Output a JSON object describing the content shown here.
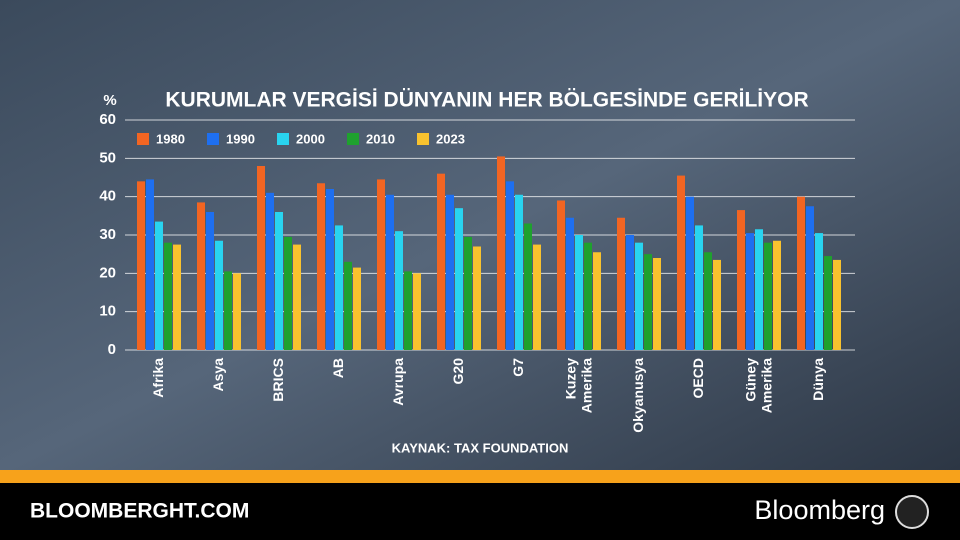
{
  "chart_data": {
    "type": "bar",
    "title": "KURUMLAR VERGİSİ DÜNYANIN HER BÖLGESİNDE GERİLİYOR",
    "y_label": "%",
    "source": "KAYNAK: TAX FOUNDATION",
    "categories": [
      "Afrika",
      "Asya",
      "BRICS",
      "AB",
      "Avrupa",
      "G20",
      "G7",
      "Kuzey Amerika",
      "Okyanusya",
      "OECD",
      "Güney Amerika",
      "Dünya"
    ],
    "series": [
      {
        "name": "1980",
        "color": "#f26522",
        "values": [
          44,
          38.5,
          48,
          43.5,
          44.5,
          46,
          50.5,
          39,
          34.5,
          45.5,
          36.5,
          40
        ]
      },
      {
        "name": "1990",
        "color": "#1e6ff0",
        "values": [
          44.5,
          36,
          41,
          42,
          40.5,
          40.5,
          44,
          34.5,
          30,
          40,
          30.5,
          37.5
        ]
      },
      {
        "name": "2000",
        "color": "#29d4f0",
        "values": [
          33.5,
          28.5,
          36,
          32.5,
          31,
          37,
          40.5,
          30,
          28,
          32.5,
          31.5,
          30.5
        ]
      },
      {
        "name": "2010",
        "color": "#1fa12e",
        "values": [
          28,
          20.5,
          29.5,
          23,
          20.5,
          29.5,
          33,
          28,
          25,
          25.5,
          28,
          24.5
        ]
      },
      {
        "name": "2023",
        "color": "#f9c22e",
        "values": [
          27.5,
          20,
          27.5,
          21.5,
          20,
          27,
          27.5,
          25.5,
          24,
          23.5,
          28.5,
          23.5
        ]
      }
    ],
    "ylim": [
      0,
      60
    ],
    "yticks": [
      0,
      10,
      20,
      30,
      40,
      50,
      60
    ],
    "grid": true
  },
  "footer": {
    "site": "BLOOMBERGHT.COM",
    "brand": "Bloomberg"
  }
}
